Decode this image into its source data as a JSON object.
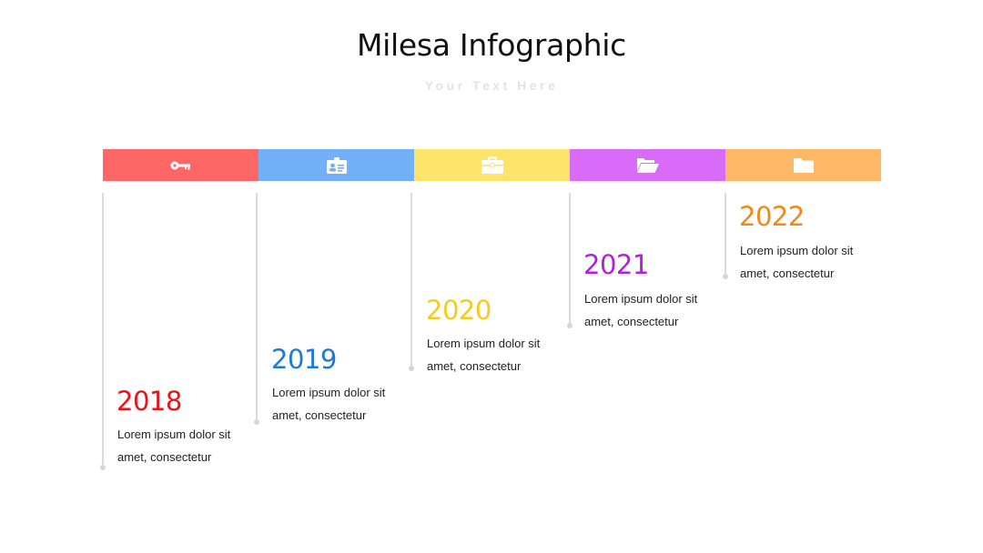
{
  "title": "Milesa Infographic",
  "subtitle": "Your Text Here",
  "timeline": [
    {
      "year": "2018",
      "line1": "Lorem ipsum dolor sit",
      "line2": "amet, consectetur",
      "color": "#ff6666",
      "year_color": "#e8131b",
      "icon": "key-icon"
    },
    {
      "year": "2019",
      "line1": "Lorem ipsum dolor sit",
      "line2": "amet, consectetur",
      "color": "#73b0f7",
      "year_color": "#1f7ad6",
      "icon": "id-card-icon"
    },
    {
      "year": "2020",
      "line1": "Lorem ipsum dolor sit",
      "line2": "amet, consectetur",
      "color": "#ffe46c",
      "year_color": "#f2cd20",
      "icon": "briefcase-icon"
    },
    {
      "year": "2021",
      "line1": "Lorem ipsum dolor sit",
      "line2": "amet, consectetur",
      "color": "#d86cf8",
      "year_color": "#b31fe0",
      "icon": "folder-open-icon"
    },
    {
      "year": "2022",
      "line1": "Lorem ipsum dolor sit",
      "line2": "amet, consectetur",
      "color": "#ffb865",
      "year_color": "#f0881a",
      "icon": "folder-icon"
    }
  ]
}
